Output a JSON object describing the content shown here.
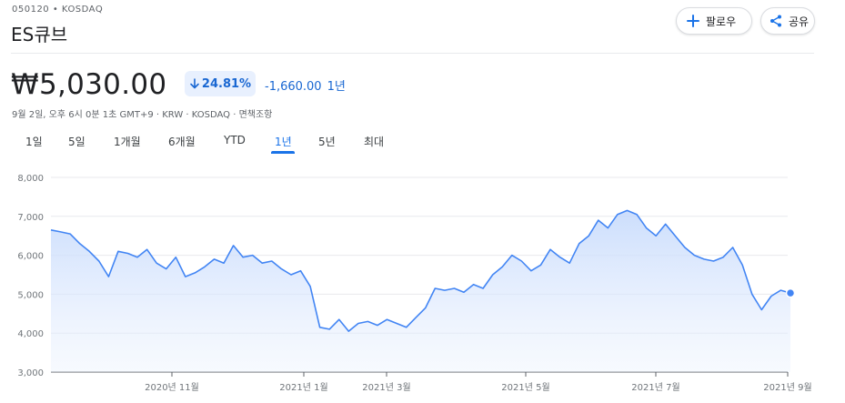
{
  "header": {
    "ticker_line": "050120 • KOSDAQ",
    "name": "ES큐브",
    "follow_label": "팔로우",
    "share_label": "공유"
  },
  "quote": {
    "price": "₩5,030.00",
    "change_percent": "24.81%",
    "change_abs": "-1,660.00",
    "change_period": "1년",
    "meta": "9월 2일, 오후 6시 0분 1초 GMT+9 · KRW · KOSDAQ · 면책조항",
    "down_color": "#1967d2"
  },
  "range_tabs": [
    {
      "label": "1일",
      "active": false
    },
    {
      "label": "5일",
      "active": false
    },
    {
      "label": "1개월",
      "active": false
    },
    {
      "label": "6개월",
      "active": false
    },
    {
      "label": "YTD",
      "active": false
    },
    {
      "label": "1년",
      "active": true
    },
    {
      "label": "5년",
      "active": false
    },
    {
      "label": "최대",
      "active": false
    }
  ],
  "chart_data": {
    "type": "area",
    "ylim": [
      3000,
      8000
    ],
    "y_ticks": [
      "8,000",
      "7,000",
      "6,000",
      "5,000",
      "4,000",
      "3,000"
    ],
    "y_tick_values": [
      8000,
      7000,
      6000,
      5000,
      4000,
      3000
    ],
    "x_tick_labels": [
      "2020년 11월",
      "2021년 1월",
      "2021년 3월",
      "2021년 5월",
      "2021년 7월",
      "2021년 9월"
    ],
    "grid": true,
    "line_color": "#4285f4",
    "fill_color": "#e8f0fe",
    "series": [
      {
        "values": [
          6650,
          6600,
          6550,
          6300,
          6100,
          5850,
          5450,
          6100,
          6050,
          5950,
          6150,
          5800,
          5650,
          5950,
          5450,
          5550,
          5700,
          5900,
          5800,
          6250,
          5950,
          6000,
          5800,
          5850,
          5650,
          5500,
          5600,
          5200,
          4150,
          4100,
          4350,
          4050,
          4250,
          4300,
          4200,
          4350,
          4250,
          4150,
          4400,
          4650,
          5150,
          5100,
          5150,
          5050,
          5250,
          5150,
          5500,
          5700,
          6000,
          5850,
          5600,
          5750,
          6150,
          5950,
          5800,
          6300,
          6500,
          6900,
          6700,
          7050,
          7150,
          7050,
          6700,
          6500,
          6800,
          6500,
          6200,
          6000,
          5900,
          5850,
          5950,
          6200,
          5750,
          5000,
          4600,
          4950,
          5100,
          5030
        ]
      }
    ]
  }
}
